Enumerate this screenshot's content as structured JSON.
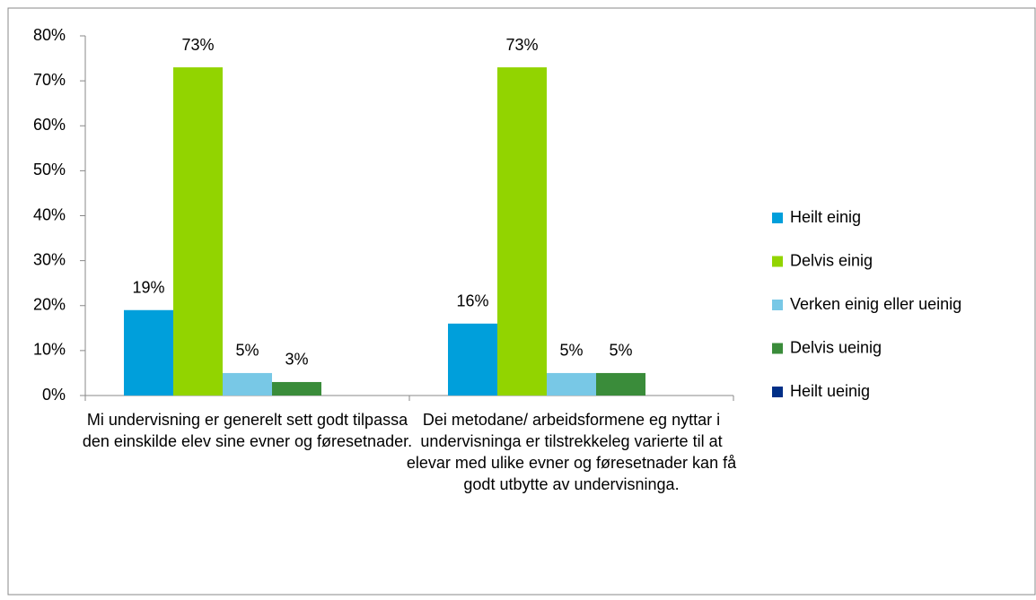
{
  "chart_data": {
    "type": "bar",
    "categories": [
      "Mi undervisning er generelt sett godt tilpassa den einskilde elev sine evner og føresetnader.",
      "Dei metodane/ arbeidsformene eg nyttar i undervisninga er tilstrekkeleg varierte til at elevar med ulike evner og føresetnader kan få godt utbytte av undervisninga."
    ],
    "series": [
      {
        "name": "Heilt einig",
        "color": "#009fdb",
        "values": [
          19,
          16
        ],
        "value_labels": [
          "19%",
          "16%"
        ]
      },
      {
        "name": "Delvis einig",
        "color": "#92d400",
        "values": [
          73,
          73
        ],
        "value_labels": [
          "73%",
          "73%"
        ]
      },
      {
        "name": "Verken einig eller ueinig",
        "color": "#78c8e6",
        "values": [
          5,
          5
        ],
        "value_labels": [
          "5%",
          "5%"
        ]
      },
      {
        "name": "Delvis ueinig",
        "color": "#3a8c3a",
        "values": [
          3,
          5
        ],
        "value_labels": [
          "3%",
          "5%"
        ]
      },
      {
        "name": "Heilt ueinig",
        "color": "#002f87",
        "values": [
          0,
          0
        ]
      }
    ],
    "ylim": [
      0,
      80
    ],
    "yticks": [
      {
        "value": 0,
        "label": "0%"
      },
      {
        "value": 10,
        "label": "10%"
      },
      {
        "value": 20,
        "label": "20%"
      },
      {
        "value": 30,
        "label": "30%"
      },
      {
        "value": 40,
        "label": "40%"
      },
      {
        "value": 50,
        "label": "50%"
      },
      {
        "value": 60,
        "label": "60%"
      },
      {
        "value": 70,
        "label": "70%"
      },
      {
        "value": 80,
        "label": "80%"
      }
    ],
    "grid": false,
    "legend": "right"
  }
}
